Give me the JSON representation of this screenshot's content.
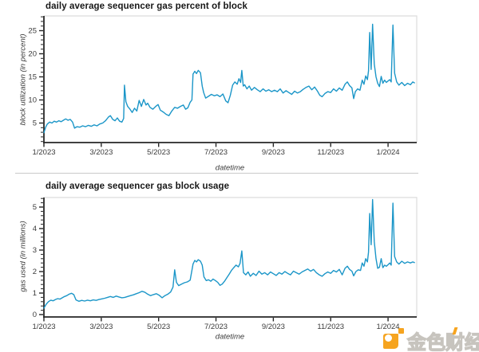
{
  "watermark": {
    "text": "金色财经",
    "accent_color": "#f6a41f"
  },
  "chart_data": [
    {
      "type": "line",
      "title": "daily average sequencer gas percent of block",
      "xlabel": "datetime",
      "ylabel": "block utilization (in percent)",
      "x_unit": "months since 2023-01-01",
      "xlim": [
        0,
        13
      ],
      "ylim": [
        0,
        28
      ],
      "grid": false,
      "legend": "none",
      "line_color": "#1b96c8",
      "x_ticks": [
        {
          "pos": 0,
          "label": "1/2023"
        },
        {
          "pos": 2,
          "label": "3/2023"
        },
        {
          "pos": 4,
          "label": "5/2023"
        },
        {
          "pos": 6,
          "label": "7/2023"
        },
        {
          "pos": 8,
          "label": "9/2023"
        },
        {
          "pos": 10,
          "label": "11/2023"
        },
        {
          "pos": 12,
          "label": "1/2024"
        }
      ],
      "y_ticks": [
        {
          "pos": 5,
          "label": "5"
        },
        {
          "pos": 10,
          "label": "10"
        },
        {
          "pos": 15,
          "label": "15"
        },
        {
          "pos": 20,
          "label": "20"
        },
        {
          "pos": 25,
          "label": "25"
        }
      ],
      "y_minor_step": 1,
      "points": [
        [
          0,
          2.9
        ],
        [
          0.06,
          4.1
        ],
        [
          0.12,
          4.8
        ],
        [
          0.2,
          5.2
        ],
        [
          0.28,
          5
        ],
        [
          0.36,
          5.4
        ],
        [
          0.44,
          5.2
        ],
        [
          0.52,
          5.5
        ],
        [
          0.6,
          5.3
        ],
        [
          0.68,
          5.6
        ],
        [
          0.76,
          5.9
        ],
        [
          0.84,
          5.6
        ],
        [
          0.92,
          5.8
        ],
        [
          1,
          5.2
        ],
        [
          1.07,
          3.9
        ],
        [
          1.15,
          4.2
        ],
        [
          1.25,
          4.1
        ],
        [
          1.35,
          4.4
        ],
        [
          1.45,
          4.2
        ],
        [
          1.55,
          4.5
        ],
        [
          1.65,
          4.3
        ],
        [
          1.75,
          4.6
        ],
        [
          1.85,
          4.4
        ],
        [
          1.95,
          4.8
        ],
        [
          2.05,
          5
        ],
        [
          2.15,
          5.5
        ],
        [
          2.25,
          6.3
        ],
        [
          2.32,
          6.6
        ],
        [
          2.4,
          5.8
        ],
        [
          2.48,
          5.5
        ],
        [
          2.56,
          6.1
        ],
        [
          2.64,
          5.4
        ],
        [
          2.72,
          5.2
        ],
        [
          2.78,
          6
        ],
        [
          2.81,
          13.2
        ],
        [
          2.86,
          9.6
        ],
        [
          2.92,
          8.6
        ],
        [
          3,
          8
        ],
        [
          3.08,
          7.3
        ],
        [
          3.16,
          8.2
        ],
        [
          3.24,
          7.6
        ],
        [
          3.32,
          9.9
        ],
        [
          3.4,
          8.6
        ],
        [
          3.48,
          10.1
        ],
        [
          3.56,
          8.9
        ],
        [
          3.62,
          9.3
        ],
        [
          3.7,
          8.4
        ],
        [
          3.8,
          8
        ],
        [
          3.9,
          8.6
        ],
        [
          3.98,
          9
        ],
        [
          4.06,
          7.8
        ],
        [
          4.16,
          7.4
        ],
        [
          4.26,
          6.9
        ],
        [
          4.36,
          6.6
        ],
        [
          4.46,
          7.6
        ],
        [
          4.56,
          8.4
        ],
        [
          4.66,
          8.2
        ],
        [
          4.76,
          8.6
        ],
        [
          4.86,
          8.9
        ],
        [
          4.94,
          8
        ],
        [
          5.02,
          8.3
        ],
        [
          5.1,
          9.5
        ],
        [
          5.16,
          10
        ],
        [
          5.2,
          15.6
        ],
        [
          5.26,
          16.2
        ],
        [
          5.32,
          15.7
        ],
        [
          5.38,
          16.4
        ],
        [
          5.46,
          15.9
        ],
        [
          5.52,
          13
        ],
        [
          5.57,
          11.6
        ],
        [
          5.64,
          10.4
        ],
        [
          5.74,
          10.8
        ],
        [
          5.84,
          11.2
        ],
        [
          5.94,
          10.9
        ],
        [
          6.04,
          11.1
        ],
        [
          6.14,
          10.7
        ],
        [
          6.24,
          11.3
        ],
        [
          6.34,
          9.8
        ],
        [
          6.42,
          9.4
        ],
        [
          6.5,
          11
        ],
        [
          6.58,
          13.2
        ],
        [
          6.66,
          13.9
        ],
        [
          6.74,
          13.4
        ],
        [
          6.8,
          14.6
        ],
        [
          6.86,
          13.8
        ],
        [
          6.9,
          16.4
        ],
        [
          6.95,
          13
        ],
        [
          7,
          13.3
        ],
        [
          7.08,
          12.4
        ],
        [
          7.16,
          13
        ],
        [
          7.24,
          12.1
        ],
        [
          7.34,
          12.7
        ],
        [
          7.44,
          12.2
        ],
        [
          7.54,
          11.8
        ],
        [
          7.64,
          12.4
        ],
        [
          7.74,
          11.9
        ],
        [
          7.84,
          12.2
        ],
        [
          7.94,
          11.8
        ],
        [
          8.04,
          12.1
        ],
        [
          8.14,
          11.8
        ],
        [
          8.24,
          12.4
        ],
        [
          8.34,
          11.5
        ],
        [
          8.44,
          12
        ],
        [
          8.54,
          11.6
        ],
        [
          8.64,
          11.2
        ],
        [
          8.74,
          11.9
        ],
        [
          8.84,
          11.5
        ],
        [
          8.94,
          11.8
        ],
        [
          9.04,
          12.3
        ],
        [
          9.14,
          12.7
        ],
        [
          9.24,
          13
        ],
        [
          9.34,
          12.2
        ],
        [
          9.44,
          12.8
        ],
        [
          9.54,
          11.9
        ],
        [
          9.62,
          11
        ],
        [
          9.7,
          10.7
        ],
        [
          9.8,
          11.4
        ],
        [
          9.9,
          11.8
        ],
        [
          10,
          11.6
        ],
        [
          10.1,
          12.4
        ],
        [
          10.2,
          11.9
        ],
        [
          10.3,
          12.6
        ],
        [
          10.4,
          12.1
        ],
        [
          10.5,
          13.4
        ],
        [
          10.58,
          13.9
        ],
        [
          10.66,
          13.1
        ],
        [
          10.74,
          12.6
        ],
        [
          10.8,
          10.3
        ],
        [
          10.86,
          11.8
        ],
        [
          10.94,
          12.4
        ],
        [
          11.02,
          12.1
        ],
        [
          11.1,
          14.3
        ],
        [
          11.16,
          13.4
        ],
        [
          11.22,
          15.2
        ],
        [
          11.28,
          14.4
        ],
        [
          11.32,
          16.3
        ],
        [
          11.36,
          24.6
        ],
        [
          11.41,
          16.6
        ],
        [
          11.46,
          26.4
        ],
        [
          11.52,
          17.8
        ],
        [
          11.58,
          15
        ],
        [
          11.64,
          13.6
        ],
        [
          11.7,
          12.9
        ],
        [
          11.76,
          15.1
        ],
        [
          11.82,
          13.6
        ],
        [
          11.88,
          14.3
        ],
        [
          11.94,
          13.8
        ],
        [
          12,
          14.1
        ],
        [
          12.06,
          14.4
        ],
        [
          12.11,
          13.9
        ],
        [
          12.17,
          26.2
        ],
        [
          12.23,
          15.8
        ],
        [
          12.3,
          13.9
        ],
        [
          12.38,
          13.2
        ],
        [
          12.48,
          13.8
        ],
        [
          12.58,
          13.1
        ],
        [
          12.68,
          13.6
        ],
        [
          12.78,
          13.3
        ],
        [
          12.86,
          13.9
        ],
        [
          12.92,
          13.7
        ]
      ]
    },
    {
      "type": "line",
      "title": "daily average sequencer gas block usage",
      "xlabel": "datetime",
      "ylabel": "gas used (in millions)",
      "x_unit": "months since 2023-01-01",
      "xlim": [
        0,
        13
      ],
      "ylim": [
        0,
        5.4
      ],
      "grid": false,
      "legend": "none",
      "line_color": "#1b96c8",
      "x_ticks": [
        {
          "pos": 0,
          "label": "1/2023"
        },
        {
          "pos": 2,
          "label": "3/2023"
        },
        {
          "pos": 4,
          "label": "5/2023"
        },
        {
          "pos": 6,
          "label": "7/2023"
        },
        {
          "pos": 8,
          "label": "9/2023"
        },
        {
          "pos": 10,
          "label": "11/2023"
        },
        {
          "pos": 12,
          "label": "1/2024"
        }
      ],
      "y_ticks": [
        {
          "pos": 0,
          "label": "0"
        },
        {
          "pos": 1,
          "label": "1"
        },
        {
          "pos": 2,
          "label": "2"
        },
        {
          "pos": 3,
          "label": "3"
        },
        {
          "pos": 4,
          "label": "4"
        },
        {
          "pos": 5,
          "label": "5"
        }
      ],
      "y_minor_step": 0.2,
      "points": [
        [
          0,
          0.3
        ],
        [
          0.08,
          0.48
        ],
        [
          0.16,
          0.6
        ],
        [
          0.24,
          0.67
        ],
        [
          0.32,
          0.64
        ],
        [
          0.4,
          0.7
        ],
        [
          0.48,
          0.74
        ],
        [
          0.56,
          0.72
        ],
        [
          0.64,
          0.78
        ],
        [
          0.72,
          0.84
        ],
        [
          0.8,
          0.88
        ],
        [
          0.88,
          0.95
        ],
        [
          0.96,
          0.99
        ],
        [
          1.04,
          0.93
        ],
        [
          1.12,
          0.68
        ],
        [
          1.22,
          0.62
        ],
        [
          1.32,
          0.66
        ],
        [
          1.42,
          0.63
        ],
        [
          1.52,
          0.67
        ],
        [
          1.62,
          0.64
        ],
        [
          1.72,
          0.68
        ],
        [
          1.82,
          0.66
        ],
        [
          1.92,
          0.7
        ],
        [
          2.02,
          0.73
        ],
        [
          2.12,
          0.76
        ],
        [
          2.22,
          0.8
        ],
        [
          2.32,
          0.84
        ],
        [
          2.42,
          0.8
        ],
        [
          2.52,
          0.86
        ],
        [
          2.62,
          0.82
        ],
        [
          2.72,
          0.78
        ],
        [
          2.82,
          0.8
        ],
        [
          2.92,
          0.84
        ],
        [
          3.02,
          0.88
        ],
        [
          3.12,
          0.92
        ],
        [
          3.22,
          0.97
        ],
        [
          3.32,
          1.02
        ],
        [
          3.42,
          1.08
        ],
        [
          3.52,
          1.04
        ],
        [
          3.62,
          0.95
        ],
        [
          3.72,
          0.88
        ],
        [
          3.82,
          0.93
        ],
        [
          3.92,
          0.97
        ],
        [
          4.02,
          0.9
        ],
        [
          4.12,
          0.78
        ],
        [
          4.22,
          0.88
        ],
        [
          4.32,
          0.95
        ],
        [
          4.42,
          1.05
        ],
        [
          4.5,
          1.28
        ],
        [
          4.56,
          2.08
        ],
        [
          4.62,
          1.5
        ],
        [
          4.7,
          1.35
        ],
        [
          4.8,
          1.42
        ],
        [
          4.9,
          1.48
        ],
        [
          5,
          1.52
        ],
        [
          5.1,
          1.6
        ],
        [
          5.2,
          2.35
        ],
        [
          5.26,
          2.52
        ],
        [
          5.32,
          2.45
        ],
        [
          5.38,
          2.55
        ],
        [
          5.46,
          2.48
        ],
        [
          5.52,
          2.3
        ],
        [
          5.58,
          1.75
        ],
        [
          5.66,
          1.58
        ],
        [
          5.74,
          1.62
        ],
        [
          5.82,
          1.55
        ],
        [
          5.9,
          1.65
        ],
        [
          5.98,
          1.58
        ],
        [
          6.06,
          1.5
        ],
        [
          6.14,
          1.36
        ],
        [
          6.22,
          1.42
        ],
        [
          6.3,
          1.55
        ],
        [
          6.38,
          1.72
        ],
        [
          6.46,
          1.88
        ],
        [
          6.54,
          2.05
        ],
        [
          6.62,
          2.18
        ],
        [
          6.7,
          2.3
        ],
        [
          6.78,
          2.22
        ],
        [
          6.84,
          2.38
        ],
        [
          6.9,
          2.96
        ],
        [
          6.96,
          1.95
        ],
        [
          7.04,
          1.85
        ],
        [
          7.12,
          1.98
        ],
        [
          7.2,
          1.78
        ],
        [
          7.3,
          1.92
        ],
        [
          7.4,
          1.82
        ],
        [
          7.5,
          2.02
        ],
        [
          7.6,
          1.88
        ],
        [
          7.7,
          1.95
        ],
        [
          7.8,
          1.85
        ],
        [
          7.9,
          1.98
        ],
        [
          8,
          1.9
        ],
        [
          8.1,
          1.82
        ],
        [
          8.2,
          1.95
        ],
        [
          8.3,
          1.88
        ],
        [
          8.4,
          2
        ],
        [
          8.5,
          1.92
        ],
        [
          8.6,
          1.85
        ],
        [
          8.7,
          2.02
        ],
        [
          8.8,
          1.95
        ],
        [
          8.9,
          1.88
        ],
        [
          9,
          1.98
        ],
        [
          9.1,
          2.05
        ],
        [
          9.2,
          2.12
        ],
        [
          9.3,
          2.02
        ],
        [
          9.4,
          2.1
        ],
        [
          9.5,
          1.95
        ],
        [
          9.6,
          1.85
        ],
        [
          9.7,
          1.78
        ],
        [
          9.8,
          1.9
        ],
        [
          9.9,
          1.98
        ],
        [
          10,
          1.92
        ],
        [
          10.1,
          2.05
        ],
        [
          10.2,
          1.98
        ],
        [
          10.3,
          2.1
        ],
        [
          10.4,
          1.85
        ],
        [
          10.5,
          2.15
        ],
        [
          10.58,
          2.25
        ],
        [
          10.66,
          2.1
        ],
        [
          10.74,
          2.02
        ],
        [
          10.8,
          1.8
        ],
        [
          10.88,
          2
        ],
        [
          10.96,
          2.08
        ],
        [
          11.04,
          2.05
        ],
        [
          11.1,
          2.4
        ],
        [
          11.16,
          2.25
        ],
        [
          11.22,
          2.6
        ],
        [
          11.28,
          2.45
        ],
        [
          11.32,
          2.9
        ],
        [
          11.36,
          4.7
        ],
        [
          11.41,
          3.25
        ],
        [
          11.46,
          5.35
        ],
        [
          11.52,
          3.4
        ],
        [
          11.58,
          2.6
        ],
        [
          11.64,
          2.15
        ],
        [
          11.7,
          2.2
        ],
        [
          11.76,
          2.6
        ],
        [
          11.82,
          2.18
        ],
        [
          11.88,
          2.3
        ],
        [
          11.94,
          2.25
        ],
        [
          12,
          2.32
        ],
        [
          12.06,
          2.4
        ],
        [
          12.11,
          2.3
        ],
        [
          12.17,
          5.18
        ],
        [
          12.23,
          2.7
        ],
        [
          12.3,
          2.45
        ],
        [
          12.38,
          2.35
        ],
        [
          12.48,
          2.48
        ],
        [
          12.58,
          2.38
        ],
        [
          12.68,
          2.45
        ],
        [
          12.78,
          2.4
        ],
        [
          12.86,
          2.45
        ],
        [
          12.92,
          2.42
        ]
      ]
    }
  ]
}
